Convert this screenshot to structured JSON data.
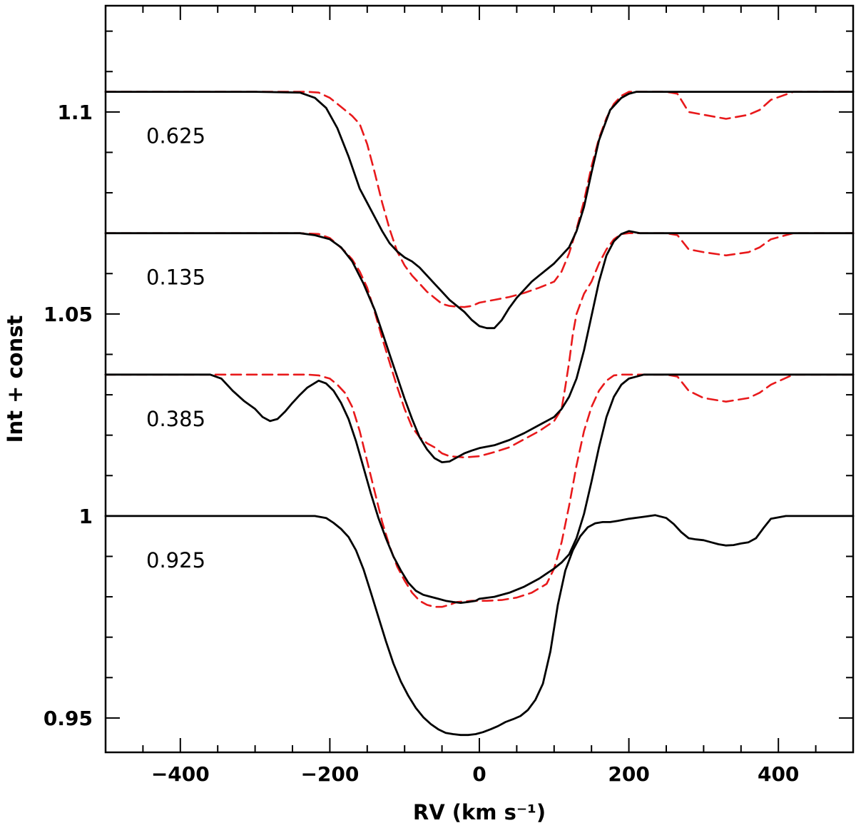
{
  "chart_data": {
    "type": "line",
    "title": "",
    "xlabel": "RV (km s⁻¹)",
    "ylabel": "Int + const",
    "xlim": [
      -500,
      500
    ],
    "ylim": [
      0.9415,
      1.1263
    ],
    "x_ticks": [
      -400,
      -200,
      0,
      200,
      400
    ],
    "x_tick_labels": [
      "−400",
      "−200",
      "0",
      "200",
      "400"
    ],
    "y_ticks": [
      0.95,
      1.0,
      1.05,
      1.1
    ],
    "y_tick_labels": [
      "0.95",
      "1",
      "1.05",
      "1.1"
    ],
    "x_minor_step": 50,
    "y_minor_step": 0.01,
    "colors": {
      "observed": "#000000",
      "model": "#e8191b"
    },
    "series": [
      {
        "name": "0.625 observed",
        "phase_label": "0.625",
        "offset": 0.105,
        "style": "solid",
        "color": "#000000",
        "x": [
          -500,
          -400,
          -300,
          -240,
          -220,
          -205,
          -190,
          -175,
          -160,
          -150,
          -140,
          -130,
          -120,
          -110,
          -100,
          -90,
          -80,
          -70,
          -60,
          -50,
          -40,
          -30,
          -20,
          -10,
          0,
          10,
          20,
          30,
          40,
          50,
          60,
          70,
          80,
          90,
          100,
          110,
          120,
          130,
          140,
          150,
          160,
          175,
          190,
          200,
          210,
          230,
          260,
          300,
          400,
          500
        ],
        "y": [
          1.105,
          1.105,
          1.105,
          1.1048,
          1.1035,
          1.101,
          1.096,
          1.089,
          1.081,
          1.0775,
          1.074,
          1.0705,
          1.0675,
          1.0655,
          1.064,
          1.063,
          1.0615,
          1.0595,
          1.0575,
          1.0555,
          1.0535,
          1.052,
          1.0505,
          1.0485,
          1.047,
          1.0465,
          1.0465,
          1.0485,
          1.0515,
          1.054,
          1.056,
          1.058,
          1.0595,
          1.061,
          1.0625,
          1.0645,
          1.0665,
          1.0705,
          1.0765,
          1.085,
          1.093,
          1.1005,
          1.1035,
          1.1045,
          1.105,
          1.105,
          1.105,
          1.105,
          1.105,
          1.105
        ]
      },
      {
        "name": "0.625 model",
        "phase_label": "",
        "offset": 0.105,
        "style": "dashed",
        "color": "#e8191b",
        "x": [
          -500,
          -400,
          -300,
          -230,
          -215,
          -200,
          -190,
          -180,
          -170,
          -160,
          -150,
          -140,
          -130,
          -120,
          -110,
          -100,
          -90,
          -80,
          -70,
          -60,
          -50,
          -40,
          -30,
          -20,
          -10,
          0,
          20,
          40,
          60,
          80,
          100,
          110,
          120,
          130,
          140,
          150,
          160,
          170,
          180,
          190,
          200,
          220,
          250,
          265,
          280,
          300,
          330,
          360,
          375,
          390,
          420,
          500
        ],
        "y": [
          1.105,
          1.105,
          1.105,
          1.105,
          1.1048,
          1.1035,
          1.102,
          1.1005,
          1.099,
          1.097,
          1.092,
          1.085,
          1.0775,
          1.071,
          1.0655,
          1.062,
          1.0595,
          1.0575,
          1.0555,
          1.054,
          1.0525,
          1.052,
          1.0518,
          1.0517,
          1.052,
          1.0528,
          1.0535,
          1.0542,
          1.0552,
          1.0565,
          1.058,
          1.0605,
          1.065,
          1.071,
          1.078,
          1.0865,
          1.0935,
          1.0985,
          1.102,
          1.104,
          1.105,
          1.105,
          1.105,
          1.1045,
          1.1,
          1.0993,
          1.0983,
          1.0993,
          1.1005,
          1.103,
          1.105,
          1.105
        ]
      },
      {
        "name": "0.135 observed",
        "phase_label": "0.135",
        "offset": 0.07,
        "style": "solid",
        "color": "#000000",
        "x": [
          -500,
          -400,
          -300,
          -240,
          -220,
          -200,
          -185,
          -170,
          -155,
          -140,
          -130,
          -120,
          -110,
          -100,
          -90,
          -80,
          -70,
          -60,
          -50,
          -40,
          -30,
          -20,
          -10,
          0,
          20,
          40,
          60,
          80,
          100,
          110,
          120,
          130,
          140,
          150,
          160,
          170,
          180,
          190,
          200,
          215,
          240,
          300,
          400,
          500
        ],
        "y": [
          1.07,
          1.07,
          1.07,
          1.07,
          1.0695,
          1.0685,
          1.0665,
          1.063,
          1.0575,
          1.051,
          1.0455,
          1.04,
          1.0345,
          1.029,
          1.024,
          1.0195,
          1.0165,
          1.0143,
          1.0133,
          1.0135,
          1.0145,
          1.0155,
          1.0162,
          1.0168,
          1.0175,
          1.0188,
          1.0205,
          1.0225,
          1.0245,
          1.0265,
          1.0295,
          1.034,
          1.041,
          1.0495,
          1.058,
          1.0645,
          1.068,
          1.0698,
          1.0705,
          1.07,
          1.07,
          1.07,
          1.07,
          1.07
        ]
      },
      {
        "name": "0.135 model",
        "phase_label": "",
        "offset": 0.07,
        "style": "dashed",
        "color": "#e8191b",
        "x": [
          -500,
          -400,
          -300,
          -240,
          -215,
          -200,
          -190,
          -180,
          -170,
          -160,
          -150,
          -140,
          -130,
          -120,
          -110,
          -100,
          -90,
          -80,
          -70,
          -60,
          -50,
          -40,
          -20,
          0,
          20,
          40,
          60,
          80,
          100,
          110,
          115,
          120,
          125,
          130,
          140,
          150,
          160,
          170,
          180,
          190,
          200,
          220,
          250,
          265,
          280,
          300,
          330,
          360,
          375,
          390,
          420,
          500
        ],
        "y": [
          1.07,
          1.07,
          1.07,
          1.07,
          1.0698,
          1.0688,
          1.0672,
          1.0655,
          1.0635,
          1.0605,
          1.0565,
          1.0505,
          1.044,
          1.038,
          1.032,
          1.0265,
          1.022,
          1.0195,
          1.018,
          1.017,
          1.0155,
          1.0148,
          1.0145,
          1.0148,
          1.0158,
          1.017,
          1.019,
          1.021,
          1.0235,
          1.0265,
          1.032,
          1.038,
          1.045,
          1.05,
          1.055,
          1.058,
          1.0625,
          1.066,
          1.0685,
          1.0698,
          1.07,
          1.07,
          1.07,
          1.0695,
          1.066,
          1.0653,
          1.0645,
          1.0653,
          1.0665,
          1.0685,
          1.07,
          1.07
        ]
      },
      {
        "name": "0.385 observed",
        "phase_label": "0.385",
        "offset": 0.035,
        "style": "solid",
        "color": "#000000",
        "x": [
          -500,
          -400,
          -360,
          -345,
          -330,
          -315,
          -300,
          -290,
          -280,
          -270,
          -260,
          -250,
          -240,
          -230,
          -215,
          -205,
          -195,
          -185,
          -175,
          -165,
          -155,
          -145,
          -135,
          -125,
          -115,
          -105,
          -95,
          -85,
          -75,
          -65,
          -55,
          -45,
          -35,
          -25,
          -15,
          -5,
          0,
          20,
          40,
          60,
          80,
          100,
          110,
          120,
          130,
          140,
          150,
          160,
          170,
          180,
          190,
          200,
          220,
          250,
          300,
          400,
          500
        ],
        "y": [
          1.035,
          1.035,
          1.035,
          1.034,
          1.031,
          1.0285,
          1.0265,
          1.0245,
          1.0235,
          1.024,
          1.0258,
          1.028,
          1.03,
          1.0318,
          1.0335,
          1.0328,
          1.031,
          1.028,
          1.024,
          1.0185,
          1.012,
          1.0055,
          0.9995,
          0.9945,
          0.99,
          0.9865,
          0.9835,
          0.9815,
          0.9805,
          0.98,
          0.9795,
          0.979,
          0.9787,
          0.9785,
          0.9787,
          0.979,
          0.9795,
          0.98,
          0.981,
          0.9825,
          0.9845,
          0.987,
          0.9885,
          0.9905,
          0.9945,
          1.0005,
          1.0085,
          1.017,
          1.0245,
          1.0295,
          1.0325,
          1.034,
          1.035,
          1.035,
          1.035,
          1.035,
          1.035
        ]
      },
      {
        "name": "0.385 model",
        "phase_label": "",
        "offset": 0.035,
        "style": "dashed",
        "color": "#e8191b",
        "x": [
          -500,
          -400,
          -300,
          -230,
          -215,
          -200,
          -190,
          -180,
          -170,
          -160,
          -150,
          -140,
          -130,
          -120,
          -110,
          -100,
          -90,
          -80,
          -70,
          -60,
          -50,
          -40,
          -30,
          -10,
          10,
          30,
          50,
          70,
          90,
          100,
          110,
          120,
          130,
          140,
          150,
          160,
          170,
          180,
          190,
          200,
          220,
          250,
          265,
          280,
          300,
          330,
          360,
          375,
          390,
          420,
          500
        ],
        "y": [
          1.035,
          1.035,
          1.035,
          1.035,
          1.0348,
          1.034,
          1.0325,
          1.0305,
          1.027,
          1.021,
          1.0135,
          1.006,
          0.9985,
          0.9925,
          0.9875,
          0.984,
          0.981,
          0.979,
          0.978,
          0.9775,
          0.9775,
          0.978,
          0.9787,
          0.979,
          0.979,
          0.9792,
          0.9798,
          0.981,
          0.9832,
          0.987,
          0.9935,
          1.0025,
          1.0125,
          1.021,
          1.027,
          1.031,
          1.0335,
          1.0348,
          1.035,
          1.035,
          1.035,
          1.035,
          1.0345,
          1.031,
          1.0292,
          1.0283,
          1.0292,
          1.0305,
          1.0325,
          1.035,
          1.035
        ]
      },
      {
        "name": "0.925 observed",
        "phase_label": "0.925",
        "offset": 0.0,
        "style": "solid",
        "color": "#000000",
        "x": [
          -500,
          -400,
          -300,
          -220,
          -205,
          -195,
          -185,
          -175,
          -165,
          -155,
          -145,
          -135,
          -125,
          -115,
          -105,
          -95,
          -85,
          -75,
          -65,
          -55,
          -45,
          -35,
          -25,
          -15,
          -5,
          5,
          15,
          25,
          35,
          45,
          55,
          65,
          75,
          85,
          95,
          105,
          115,
          125,
          135,
          145,
          155,
          165,
          175,
          185,
          200,
          220,
          235,
          250,
          260,
          270,
          280,
          290,
          300,
          310,
          320,
          330,
          340,
          350,
          360,
          370,
          380,
          390,
          410,
          450,
          500
        ],
        "y": [
          1.0,
          1.0,
          1.0,
          1.0,
          0.9995,
          0.9983,
          0.9968,
          0.9948,
          0.9915,
          0.9868,
          0.981,
          0.975,
          0.969,
          0.9635,
          0.959,
          0.9555,
          0.9525,
          0.9502,
          0.9485,
          0.9472,
          0.9463,
          0.946,
          0.9458,
          0.9458,
          0.946,
          0.9465,
          0.9472,
          0.948,
          0.949,
          0.9497,
          0.9505,
          0.952,
          0.9545,
          0.9585,
          0.9665,
          0.978,
          0.9865,
          0.9915,
          0.995,
          0.9972,
          0.9982,
          0.9985,
          0.9985,
          0.9988,
          0.9993,
          0.9998,
          1.0002,
          0.9995,
          0.998,
          0.996,
          0.9945,
          0.9942,
          0.994,
          0.9935,
          0.993,
          0.9927,
          0.9928,
          0.9932,
          0.9935,
          0.9945,
          0.997,
          0.9993,
          1.0,
          1.0,
          1.0
        ]
      }
    ]
  }
}
